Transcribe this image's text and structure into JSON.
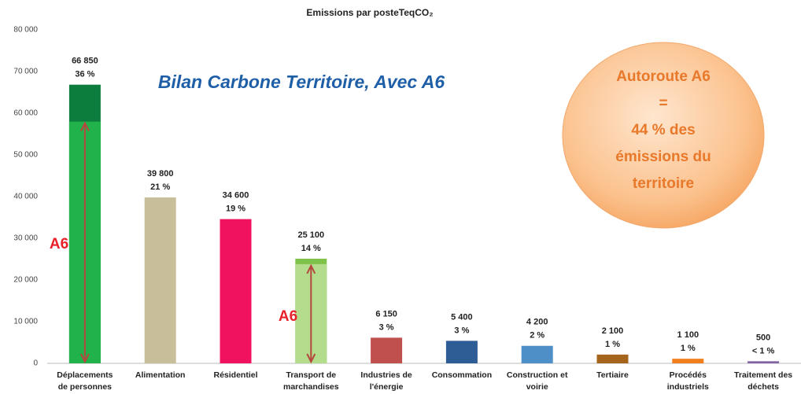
{
  "chart_data": {
    "type": "bar",
    "title": "Emissions par posteTeqCO₂",
    "categories": [
      [
        "Déplacements",
        "de personnes"
      ],
      [
        "Alimentation"
      ],
      [
        "Résidentiel"
      ],
      [
        "Transport de",
        "marchandises"
      ],
      [
        "Industries de",
        "l'énergie"
      ],
      [
        "Consommation"
      ],
      [
        "Construction et",
        "voirie"
      ],
      [
        "Tertiaire"
      ],
      [
        "Procédés",
        "industriels"
      ],
      [
        "Traitement des",
        "déchets"
      ]
    ],
    "values": [
      66850,
      39800,
      34600,
      25100,
      6150,
      5400,
      4200,
      2100,
      1100,
      500
    ],
    "value_labels": [
      "66 850",
      "39 800",
      "34 600",
      "25 100",
      "6 150",
      "5 400",
      "4 200",
      "2 100",
      "1 100",
      "500"
    ],
    "share_labels": [
      "36 %",
      "21 %",
      "19 %",
      "14 %",
      "3 %",
      "3 %",
      "2 %",
      "1 %",
      "1 %",
      "< 1 %"
    ],
    "colors": [
      "#0c7d3c",
      "#c8bf9a",
      "#f0115f",
      "#7fc24a",
      "#c0504d",
      "#2e5d95",
      "#4f8fc7",
      "#a4641c",
      "#f07f1e",
      "#8064a2"
    ],
    "a6_values": [
      58000,
      null,
      null,
      23800,
      null,
      null,
      null,
      null,
      null,
      null
    ],
    "a6_colors": [
      "#22b24c",
      null,
      null,
      "#b3dc8c",
      null,
      null,
      null,
      null,
      null,
      null
    ],
    "a6_label": "A6",
    "annotation": "Bilan Carbone Territoire, Avec A6",
    "callout": [
      "Autoroute A6",
      "=",
      "44 % des",
      "émissions du",
      "territoire"
    ],
    "ylim": [
      0,
      80000
    ],
    "yticks": [
      0,
      {
        "value": 10000,
        "label": "10 000"
      },
      {
        "value": 20000,
        "label": "20 000"
      },
      {
        "value": 30000,
        "label": "30 000"
      },
      {
        "value": 40000,
        "label": "40 000"
      },
      {
        "value": 50000,
        "label": "50 000"
      },
      {
        "value": 60000,
        "label": "60 000"
      },
      {
        "value": 70000,
        "label": "70 000"
      },
      {
        "value": 80000,
        "label": "80 000"
      }
    ],
    "grid": false
  }
}
